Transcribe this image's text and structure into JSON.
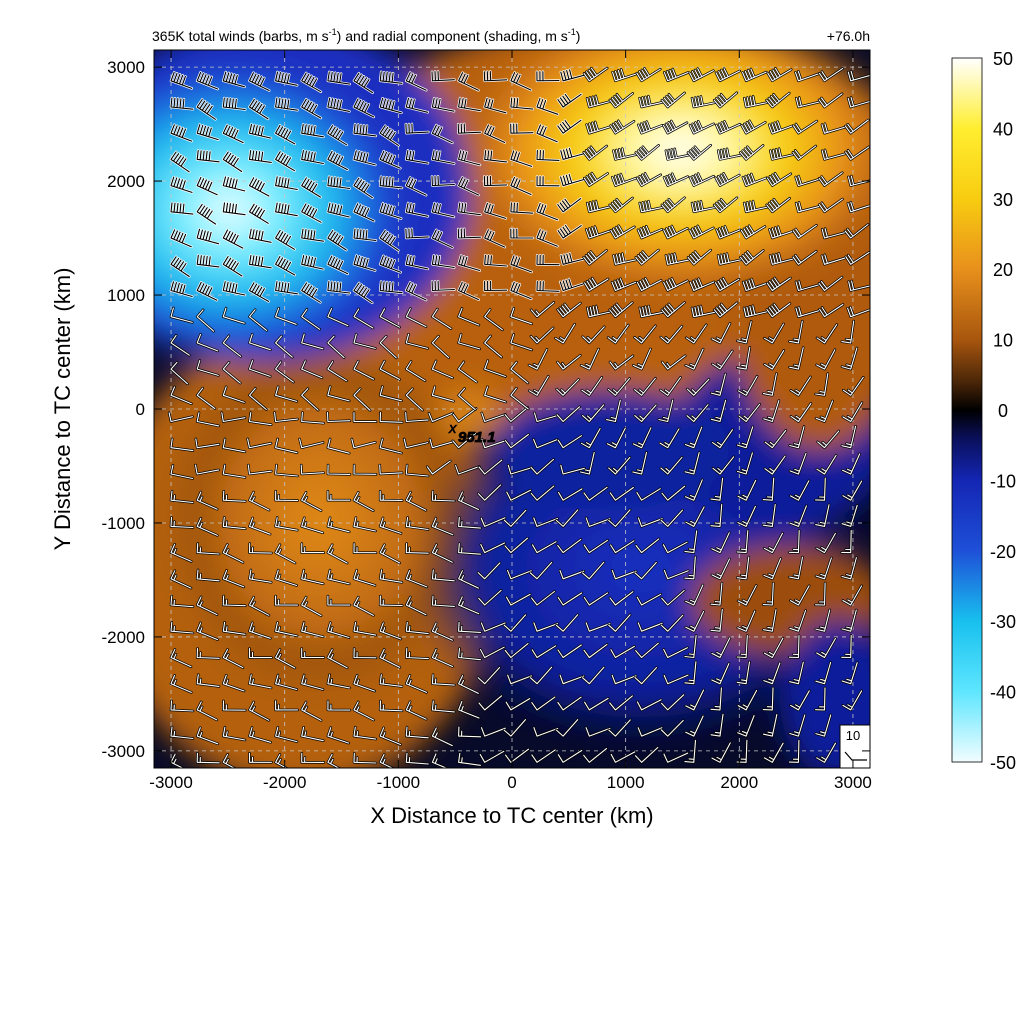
{
  "header": {
    "title_prefix": "365K total winds (barbs, m s",
    "title_mid": ") and radial component (shading, m s",
    "title_suffix": ")",
    "unit_exp": "-1",
    "forecast_time": "+76.0h"
  },
  "center_label": "951.1",
  "reference_barb": {
    "label": "10"
  },
  "colors": {
    "background": "#000000",
    "negative_deep": "#0a1e9b",
    "negative_strong": "#1e3cc8",
    "negative_cyan": "#18c8f0",
    "negative_max": "#e6fbff",
    "positive_brown": "#b85e10",
    "positive_orange": "#e08a18",
    "positive_yellow": "#f4c800",
    "positive_max": "#fffde6",
    "grid": "#c8c8c8"
  },
  "chart_data": {
    "type": "heatmap",
    "title": "365K total winds (barbs, m s-1) and radial component (shading, m s-1)",
    "xlabel": "X Distance to TC center (km)",
    "ylabel": "Y Distance to TC center (km)",
    "xlim": [
      -3150,
      3150
    ],
    "ylim": [
      -3150,
      3150
    ],
    "x_ticks": [
      -3000,
      -2000,
      -1000,
      0,
      1000,
      2000,
      3000
    ],
    "y_ticks": [
      -3000,
      -2000,
      -1000,
      0,
      1000,
      2000,
      3000
    ],
    "grid": true,
    "colorbar": {
      "min": -50,
      "max": 50,
      "ticks": [
        50,
        40,
        30,
        20,
        10,
        0,
        -10,
        -20,
        -30,
        -40,
        -50
      ],
      "stops": [
        {
          "value": -50,
          "color": "#f2fdff"
        },
        {
          "value": -40,
          "color": "#5ee6ff"
        },
        {
          "value": -30,
          "color": "#18c0ee"
        },
        {
          "value": -20,
          "color": "#1e50d8"
        },
        {
          "value": -10,
          "color": "#1426b4"
        },
        {
          "value": -4,
          "color": "#0a0f5a"
        },
        {
          "value": 0,
          "color": "#000000"
        },
        {
          "value": 4,
          "color": "#4a2608"
        },
        {
          "value": 10,
          "color": "#a8560e"
        },
        {
          "value": 20,
          "color": "#e8901c"
        },
        {
          "value": 30,
          "color": "#f8cc10"
        },
        {
          "value": 40,
          "color": "#ffee30"
        },
        {
          "value": 50,
          "color": "#ffffff"
        }
      ]
    },
    "tc_center": {
      "x": -500,
      "y": -150,
      "value": 951.1
    },
    "regions": [
      {
        "sign": "negative",
        "center": [
          -2400,
          1600
        ],
        "peak": -48
      },
      {
        "sign": "positive",
        "center": [
          1400,
          2000
        ],
        "peak": 48
      },
      {
        "sign": "positive",
        "center": [
          -1800,
          -800
        ],
        "peak": 18
      },
      {
        "sign": "negative",
        "center": [
          600,
          -1200
        ],
        "peak": -14
      },
      {
        "sign": "positive",
        "center": [
          2600,
          900
        ],
        "peak": 16
      },
      {
        "sign": "positive",
        "center": [
          2400,
          -1700
        ],
        "peak": 14
      }
    ]
  }
}
